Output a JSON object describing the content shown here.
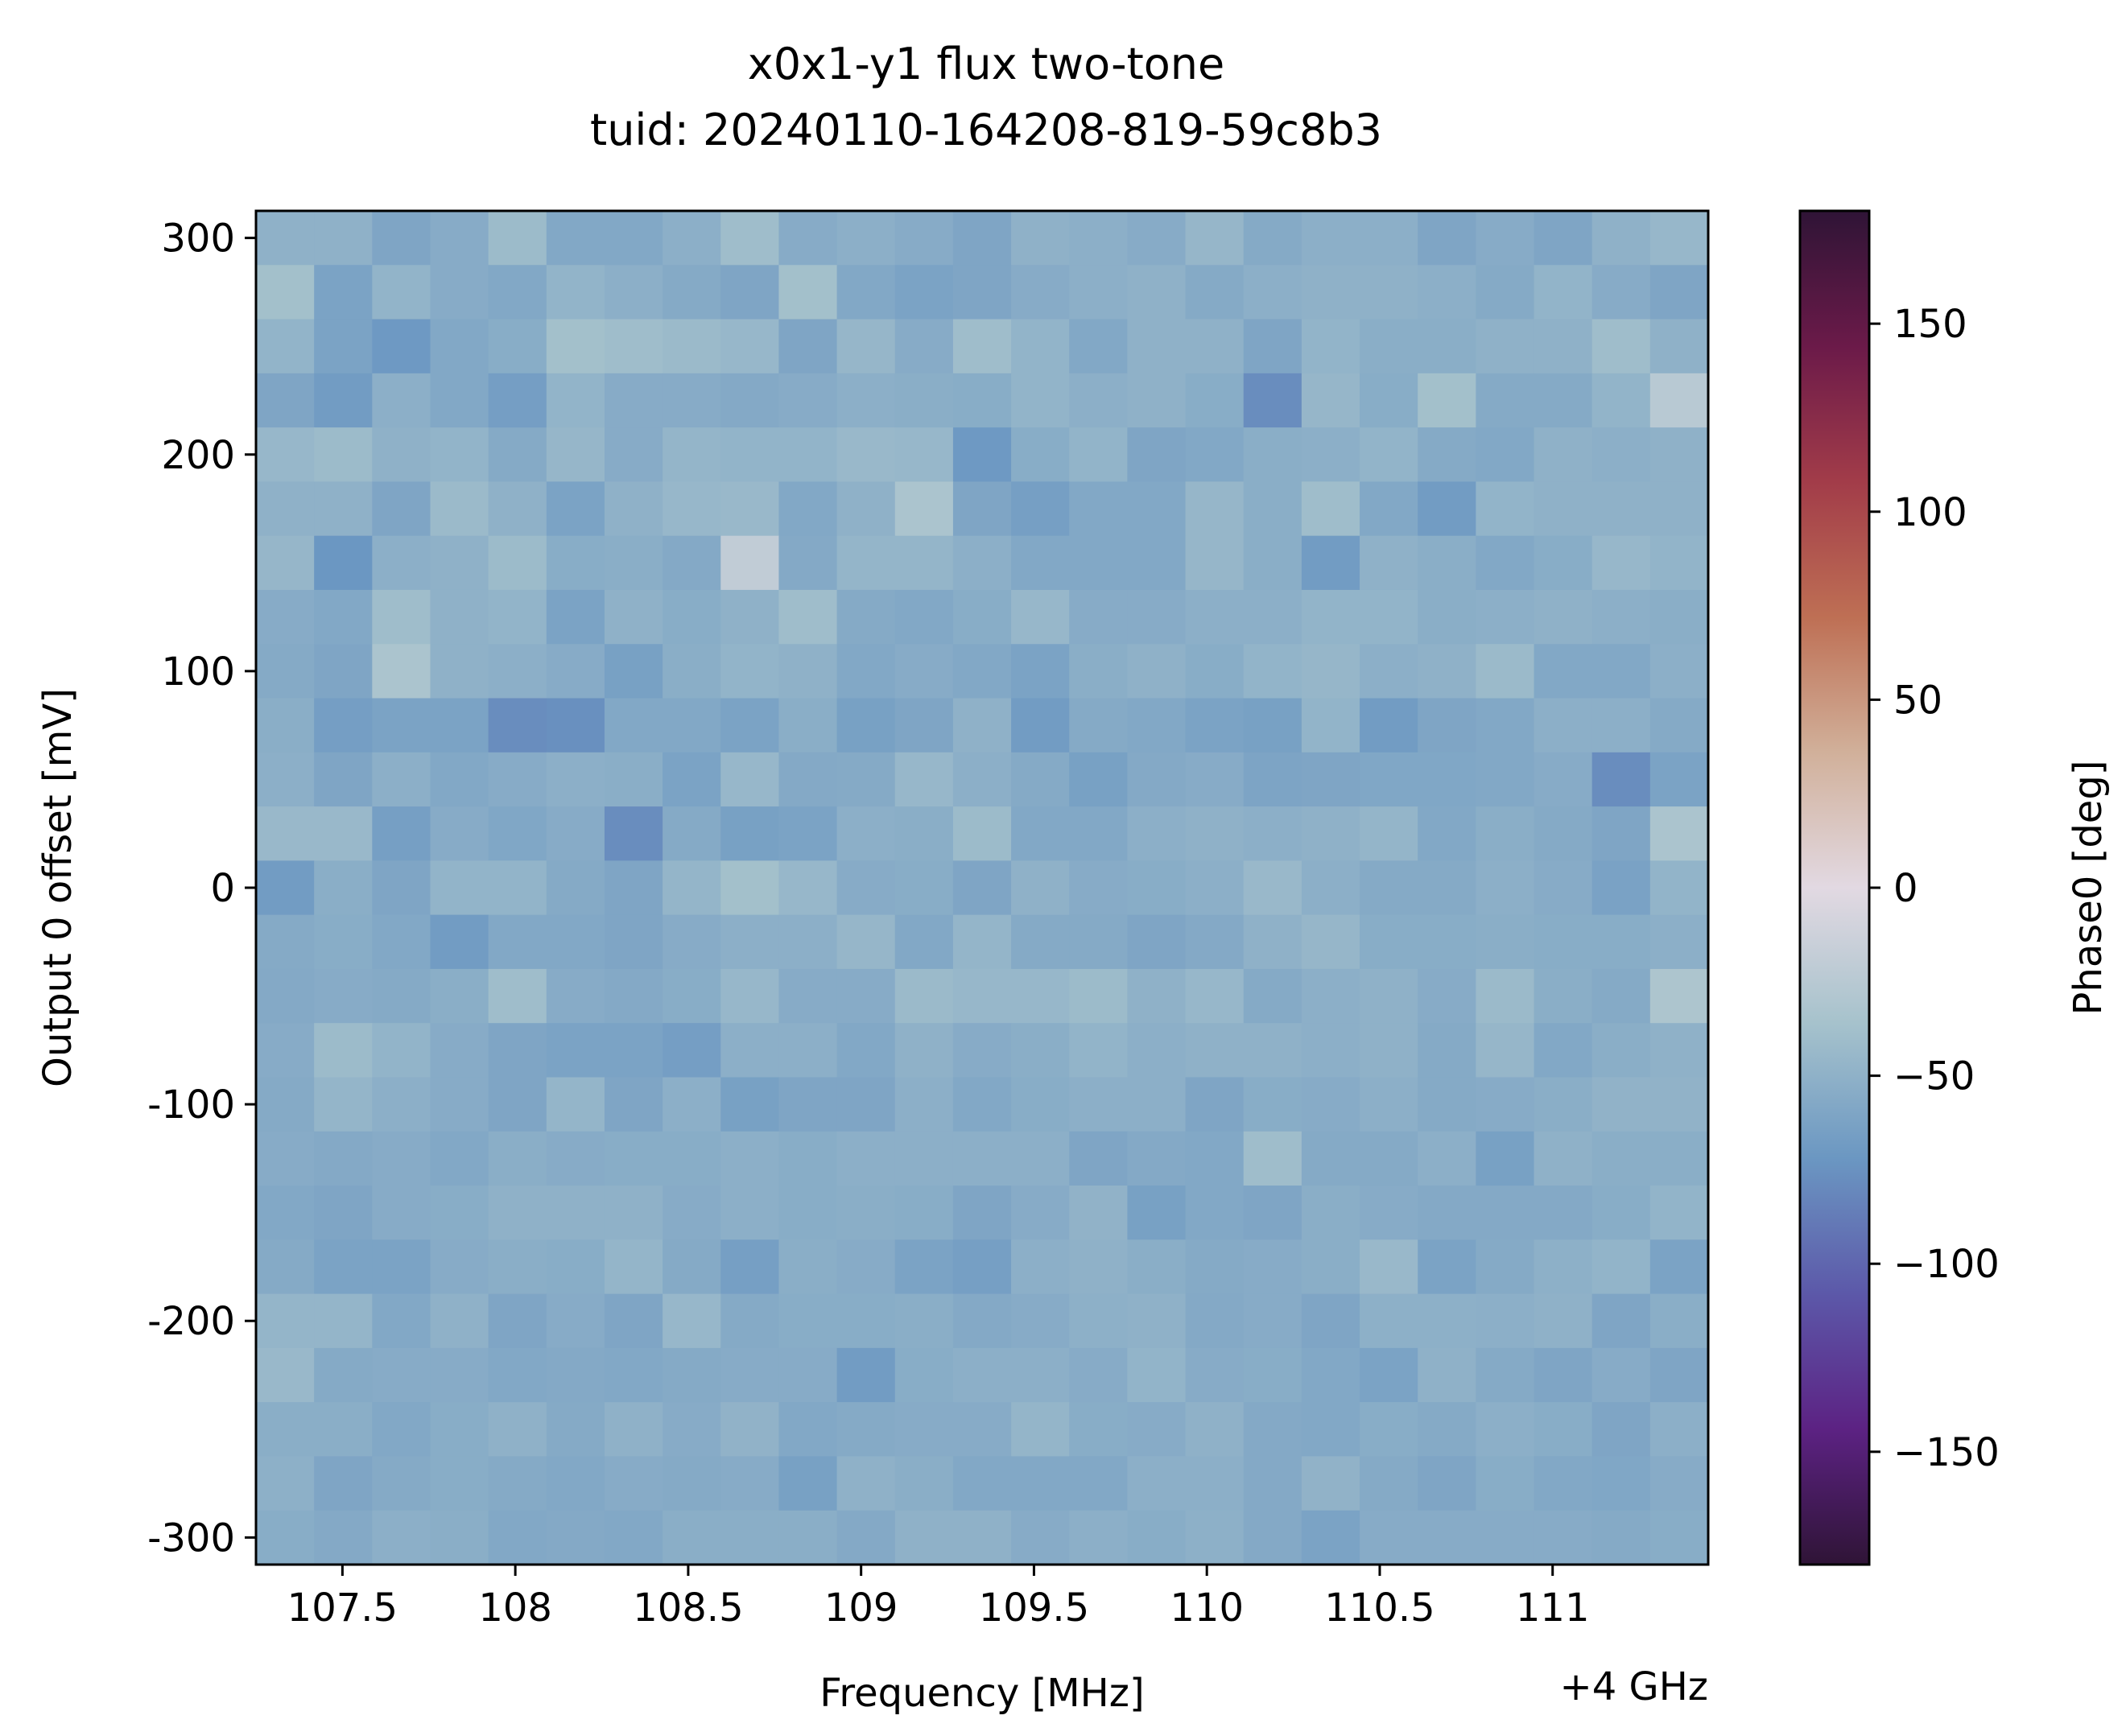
{
  "chart_data": {
    "type": "heatmap",
    "title": "x0x1-y1 flux two-tone",
    "subtitle": "tuid: 20240110-164208-819-59c8b3",
    "xlabel": "Frequency [MHz]",
    "x_offset_label": "+4 GHz",
    "ylabel": "Output 0 offset [mV]",
    "colorbar_label": "Phase0 [deg]",
    "colormap": "twilight_shifted",
    "color_range": [
      -180,
      180
    ],
    "xlim": [
      107.25,
      111.45
    ],
    "ylim": [
      -312.5,
      312.5
    ],
    "x_ticks": [
      {
        "value": 107.5,
        "label": "107.5"
      },
      {
        "value": 108,
        "label": "108"
      },
      {
        "value": 108.5,
        "label": "108.5"
      },
      {
        "value": 109,
        "label": "109"
      },
      {
        "value": 109.5,
        "label": "109.5"
      },
      {
        "value": 110,
        "label": "110"
      },
      {
        "value": 110.5,
        "label": "110.5"
      },
      {
        "value": 111,
        "label": "111"
      }
    ],
    "y_ticks": [
      {
        "value": 300,
        "label": "300"
      },
      {
        "value": 200,
        "label": "200"
      },
      {
        "value": 100,
        "label": "100"
      },
      {
        "value": 0,
        "label": "0"
      },
      {
        "value": -100,
        "label": "-100"
      },
      {
        "value": -200,
        "label": "-200"
      },
      {
        "value": -300,
        "label": "-300"
      }
    ],
    "colorbar_ticks": [
      {
        "value": 150,
        "label": "150"
      },
      {
        "value": 100,
        "label": "100"
      },
      {
        "value": 50,
        "label": "50"
      },
      {
        "value": 0,
        "label": "0"
      },
      {
        "value": -50,
        "label": "−50"
      },
      {
        "value": -100,
        "label": "−100"
      },
      {
        "value": -150,
        "label": "−150"
      }
    ],
    "x": [
      107.33,
      107.5,
      107.67,
      107.83,
      108.0,
      108.17,
      108.33,
      108.5,
      108.67,
      108.83,
      109.0,
      109.17,
      109.33,
      109.5,
      109.67,
      109.83,
      110.0,
      110.17,
      110.33,
      110.5,
      110.67,
      110.83,
      111.0,
      111.17,
      111.33
    ],
    "y": [
      300,
      275,
      250,
      225,
      200,
      175,
      150,
      125,
      100,
      75,
      50,
      25,
      0,
      -25,
      -50,
      -75,
      -100,
      -125,
      -150,
      -175,
      -200,
      -225,
      -250,
      -275,
      -300
    ],
    "z": [
      [
        -50,
        -50,
        -60,
        -55,
        -42,
        -58,
        -58,
        -52,
        -40,
        -55,
        -52,
        -55,
        -60,
        -50,
        -52,
        -55,
        -46,
        -56,
        -52,
        -52,
        -60,
        -55,
        -60,
        -50,
        -45
      ],
      [
        -38,
        -62,
        -48,
        -55,
        -58,
        -48,
        -52,
        -56,
        -60,
        -38,
        -58,
        -62,
        -60,
        -55,
        -52,
        -50,
        -56,
        -52,
        -50,
        -50,
        -52,
        -56,
        -48,
        -55,
        -60
      ],
      [
        -48,
        -62,
        -70,
        -58,
        -54,
        -38,
        -40,
        -43,
        -45,
        -60,
        -46,
        -55,
        -40,
        -48,
        -58,
        -50,
        -50,
        -60,
        -48,
        -53,
        -53,
        -50,
        -50,
        -40,
        -50
      ],
      [
        -60,
        -68,
        -52,
        -58,
        -66,
        -48,
        -55,
        -55,
        -57,
        -55,
        -52,
        -53,
        -54,
        -48,
        -52,
        -50,
        -54,
        -78,
        -46,
        -54,
        -38,
        -56,
        -56,
        -48,
        -25
      ],
      [
        -45,
        -42,
        -50,
        -48,
        -56,
        -46,
        -55,
        -47,
        -48,
        -48,
        -44,
        -45,
        -70,
        -54,
        -48,
        -60,
        -58,
        -53,
        -52,
        -48,
        -56,
        -58,
        -50,
        -52,
        -50
      ],
      [
        -50,
        -50,
        -60,
        -43,
        -50,
        -62,
        -50,
        -45,
        -44,
        -58,
        -50,
        -33,
        -60,
        -65,
        -58,
        -58,
        -46,
        -53,
        -40,
        -58,
        -68,
        -48,
        -50,
        -50,
        -50
      ],
      [
        -46,
        -72,
        -52,
        -50,
        -42,
        -54,
        -53,
        -57,
        -20,
        -57,
        -47,
        -47,
        -52,
        -58,
        -58,
        -58,
        -46,
        -53,
        -68,
        -50,
        -53,
        -58,
        -54,
        -45,
        -48
      ],
      [
        -55,
        -58,
        -40,
        -50,
        -48,
        -62,
        -50,
        -54,
        -50,
        -40,
        -56,
        -58,
        -54,
        -45,
        -55,
        -55,
        -52,
        -52,
        -48,
        -48,
        -53,
        -52,
        -50,
        -52,
        -53
      ],
      [
        -56,
        -60,
        -33,
        -50,
        -52,
        -55,
        -64,
        -53,
        -48,
        -50,
        -58,
        -55,
        -58,
        -62,
        -53,
        -50,
        -54,
        -48,
        -46,
        -52,
        -50,
        -43,
        -58,
        -58,
        -52
      ],
      [
        -53,
        -66,
        -62,
        -62,
        -78,
        -76,
        -58,
        -58,
        -62,
        -53,
        -64,
        -60,
        -50,
        -68,
        -56,
        -58,
        -62,
        -64,
        -48,
        -68,
        -60,
        -58,
        -52,
        -52,
        -56
      ],
      [
        -52,
        -60,
        -52,
        -58,
        -55,
        -52,
        -53,
        -62,
        -45,
        -57,
        -56,
        -45,
        -52,
        -56,
        -64,
        -57,
        -55,
        -61,
        -60,
        -59,
        -59,
        -58,
        -55,
        -78,
        -62
      ],
      [
        -44,
        -44,
        -65,
        -55,
        -59,
        -55,
        -78,
        -56,
        -64,
        -62,
        -52,
        -53,
        -42,
        -58,
        -58,
        -52,
        -50,
        -52,
        -50,
        -47,
        -58,
        -53,
        -56,
        -60,
        -33
      ],
      [
        -68,
        -53,
        -60,
        -48,
        -48,
        -56,
        -60,
        -47,
        -38,
        -45,
        -55,
        -54,
        -60,
        -50,
        -55,
        -54,
        -52,
        -44,
        -52,
        -56,
        -56,
        -52,
        -55,
        -63,
        -48
      ],
      [
        -56,
        -54,
        -58,
        -68,
        -58,
        -58,
        -60,
        -55,
        -52,
        -52,
        -46,
        -58,
        -47,
        -56,
        -56,
        -60,
        -57,
        -50,
        -46,
        -54,
        -54,
        -53,
        -54,
        -54,
        -52
      ],
      [
        -57,
        -55,
        -56,
        -53,
        -40,
        -55,
        -57,
        -54,
        -45,
        -55,
        -55,
        -43,
        -45,
        -45,
        -42,
        -50,
        -45,
        -56,
        -52,
        -50,
        -55,
        -43,
        -53,
        -56,
        -32
      ],
      [
        -55,
        -42,
        -48,
        -55,
        -60,
        -62,
        -62,
        -66,
        -52,
        -52,
        -58,
        -50,
        -55,
        -53,
        -48,
        -52,
        -50,
        -50,
        -52,
        -50,
        -56,
        -46,
        -58,
        -53,
        -50
      ],
      [
        -56,
        -47,
        -52,
        -55,
        -60,
        -47,
        -60,
        -52,
        -64,
        -60,
        -60,
        -52,
        -58,
        -54,
        -52,
        -52,
        -60,
        -54,
        -55,
        -52,
        -56,
        -55,
        -53,
        -49,
        -49
      ],
      [
        -55,
        -57,
        -55,
        -58,
        -53,
        -55,
        -54,
        -54,
        -52,
        -54,
        -52,
        -52,
        -52,
        -52,
        -60,
        -57,
        -58,
        -40,
        -56,
        -56,
        -52,
        -64,
        -50,
        -53,
        -53
      ],
      [
        -58,
        -60,
        -55,
        -54,
        -50,
        -50,
        -50,
        -55,
        -52,
        -54,
        -53,
        -54,
        -60,
        -55,
        -49,
        -64,
        -58,
        -60,
        -53,
        -55,
        -57,
        -57,
        -57,
        -54,
        -48
      ],
      [
        -56,
        -62,
        -62,
        -55,
        -53,
        -54,
        -47,
        -56,
        -65,
        -53,
        -55,
        -62,
        -65,
        -52,
        -50,
        -53,
        -56,
        -55,
        -53,
        -44,
        -62,
        -56,
        -51,
        -48,
        -62
      ],
      [
        -47,
        -47,
        -58,
        -50,
        -60,
        -55,
        -60,
        -45,
        -56,
        -54,
        -54,
        -53,
        -57,
        -55,
        -51,
        -50,
        -57,
        -55,
        -60,
        -51,
        -51,
        -52,
        -50,
        -60,
        -53
      ],
      [
        -44,
        -56,
        -55,
        -55,
        -58,
        -57,
        -58,
        -56,
        -55,
        -55,
        -68,
        -54,
        -52,
        -52,
        -55,
        -48,
        -55,
        -54,
        -58,
        -62,
        -50,
        -56,
        -60,
        -55,
        -60
      ],
      [
        -53,
        -53,
        -58,
        -54,
        -50,
        -56,
        -50,
        -55,
        -49,
        -58,
        -56,
        -55,
        -55,
        -47,
        -54,
        -55,
        -50,
        -57,
        -58,
        -54,
        -56,
        -52,
        -54,
        -60,
        -52
      ],
      [
        -51,
        -60,
        -56,
        -54,
        -56,
        -58,
        -55,
        -56,
        -55,
        -64,
        -50,
        -53,
        -58,
        -58,
        -58,
        -52,
        -52,
        -57,
        -49,
        -56,
        -60,
        -54,
        -58,
        -59,
        -55
      ],
      [
        -54,
        -57,
        -52,
        -53,
        -58,
        -57,
        -58,
        -53,
        -53,
        -53,
        -57,
        -50,
        -50,
        -55,
        -52,
        -54,
        -51,
        -57,
        -62,
        -55,
        -55,
        -55,
        -55,
        -56,
        -54
      ]
    ]
  }
}
